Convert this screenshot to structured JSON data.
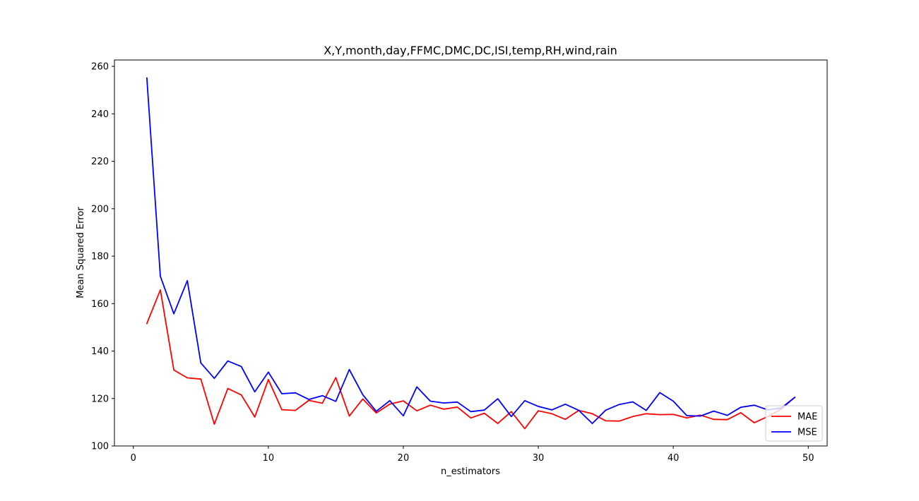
{
  "chart_data": {
    "type": "line",
    "title": "X,Y,month,day,FFMC,DMC,DC,ISI,temp,RH,wind,rain",
    "xlabel": "n_estimators",
    "ylabel": "Mean Squared Error",
    "xlim": [
      -1.4,
      51.4
    ],
    "ylim": [
      100,
      262.7
    ],
    "xticks": [
      0,
      10,
      20,
      30,
      40,
      50
    ],
    "yticks": [
      100,
      120,
      140,
      160,
      180,
      200,
      220,
      240,
      260
    ],
    "legend_position": "lower right",
    "grid": false,
    "x": [
      1,
      2,
      3,
      4,
      5,
      6,
      7,
      8,
      9,
      10,
      11,
      12,
      13,
      14,
      15,
      16,
      17,
      18,
      19,
      20,
      21,
      22,
      23,
      24,
      25,
      26,
      27,
      28,
      29,
      30,
      31,
      32,
      33,
      34,
      35,
      36,
      37,
      38,
      39,
      40,
      41,
      42,
      43,
      44,
      45,
      46,
      47,
      48,
      49
    ],
    "series": [
      {
        "name": "MAE",
        "color": "#ff0000",
        "values": [
          151.6,
          165.8,
          132.0,
          128.7,
          128.2,
          109.2,
          124.2,
          121.5,
          112.2,
          128.0,
          115.3,
          115.0,
          119.2,
          118.0,
          128.8,
          112.6,
          119.8,
          113.9,
          117.6,
          119.0,
          114.8,
          117.2,
          115.5,
          116.4,
          111.8,
          113.8,
          109.5,
          114.5,
          107.3,
          114.8,
          113.6,
          111.2,
          115.0,
          113.6,
          110.6,
          110.5,
          112.4,
          113.6,
          113.2,
          113.3,
          111.8,
          113.0,
          111.2,
          111.1,
          114.0,
          109.8,
          112.4,
          115.6,
          120.5
        ]
      },
      {
        "name": "MSE",
        "color": "#0000ff",
        "values": [
          255.1,
          171.5,
          155.7,
          169.7,
          135.0,
          128.5,
          135.8,
          133.5,
          122.8,
          131.1,
          122.0,
          122.4,
          119.6,
          121.2,
          118.8,
          132.2,
          121.6,
          114.6,
          119.1,
          112.7,
          124.9,
          118.9,
          118.1,
          118.5,
          114.5,
          115.1,
          119.9,
          112.4,
          119.1,
          116.7,
          115.2,
          117.6,
          115.0,
          109.5,
          115.1,
          117.5,
          118.6,
          115.0,
          122.5,
          118.9,
          112.8,
          112.6,
          114.7,
          112.9,
          116.3,
          117.2,
          115.2,
          116.0,
          120.5
        ]
      }
    ]
  }
}
